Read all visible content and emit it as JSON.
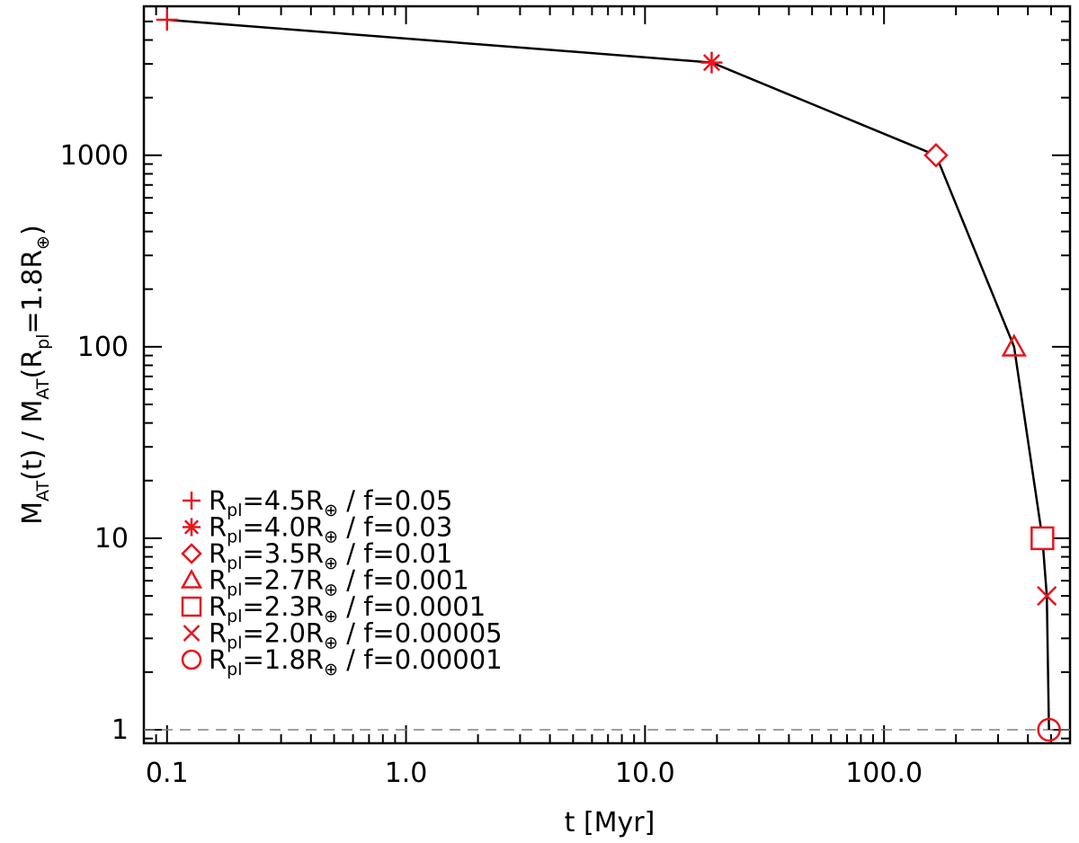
{
  "chart_data": {
    "type": "line",
    "xlabel": "t  [Myr]",
    "ylabel": {
      "pre": "M",
      "sub1": "AT",
      "mid": "(t)  /  M",
      "sub2": "AT",
      "open": "(R",
      "sub3": "pl",
      "val": "=1.8R",
      "sub4": "⊕",
      "close": ")"
    },
    "x_scale": "log",
    "y_scale": "log",
    "xlim": [
      0.08,
      600
    ],
    "ylim": [
      0.85,
      6000
    ],
    "x_ticks": [
      {
        "value": 0.1,
        "label": "0.1"
      },
      {
        "value": 1,
        "label": "1.0"
      },
      {
        "value": 10,
        "label": "10.0"
      },
      {
        "value": 100,
        "label": "100.0"
      }
    ],
    "y_ticks": [
      {
        "value": 1,
        "label": "1"
      },
      {
        "value": 10,
        "label": "10"
      },
      {
        "value": 100,
        "label": "100"
      },
      {
        "value": 1000,
        "label": "1000"
      }
    ],
    "reference_line": {
      "y": 1,
      "style": "dashed",
      "color": "#808080"
    },
    "line_color": "#000000",
    "marker_color": "#e8141c",
    "grid": false,
    "legend_position": "bottom-left",
    "series": [
      {
        "name": "+",
        "marker": "plus",
        "x": 0.1,
        "y": 5100,
        "r": "4.5",
        "f": "0.05"
      },
      {
        "name": "*",
        "marker": "asterisk",
        "x": 19,
        "y": 3050,
        "r": "4.0",
        "f": "0.03"
      },
      {
        "name": "diamond",
        "marker": "diamond",
        "x": 165,
        "y": 1000,
        "r": "3.5",
        "f": "0.01"
      },
      {
        "name": "triangle",
        "marker": "triangle",
        "x": 350,
        "y": 100,
        "r": "2.7",
        "f": "0.001"
      },
      {
        "name": "square",
        "marker": "square",
        "x": 460,
        "y": 10,
        "r": "2.3",
        "f": "0.0001"
      },
      {
        "name": "x",
        "marker": "cross",
        "x": 480,
        "y": 5,
        "r": "2.0",
        "f": "0.00005"
      },
      {
        "name": "circle",
        "marker": "circle",
        "x": 490,
        "y": 1,
        "r": "1.8",
        "f": "0.00001"
      }
    ],
    "legend_text": {
      "r_prefix": "R",
      "r_sub": "pl",
      "eq": "=",
      "r_unit": "R",
      "r_unit_sub": "⊕",
      "sep": "  /  f="
    }
  }
}
